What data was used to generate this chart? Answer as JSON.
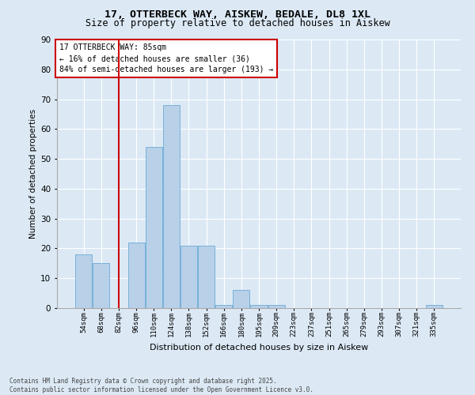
{
  "title1": "17, OTTERBECK WAY, AISKEW, BEDALE, DL8 1XL",
  "title2": "Size of property relative to detached houses in Aiskew",
  "xlabel": "Distribution of detached houses by size in Aiskew",
  "ylabel": "Number of detached properties",
  "categories": [
    "54sqm",
    "68sqm",
    "82sqm",
    "96sqm",
    "110sqm",
    "124sqm",
    "138sqm",
    "152sqm",
    "166sqm",
    "180sqm",
    "195sqm",
    "209sqm",
    "223sqm",
    "237sqm",
    "251sqm",
    "265sqm",
    "279sqm",
    "293sqm",
    "307sqm",
    "321sqm",
    "335sqm"
  ],
  "values": [
    18,
    15,
    0,
    22,
    54,
    68,
    21,
    21,
    1,
    6,
    1,
    1,
    0,
    0,
    0,
    0,
    0,
    0,
    0,
    0,
    1
  ],
  "bar_color": "#b8d0e8",
  "bar_edge_color": "#6aaad4",
  "bg_color": "#dce9f5",
  "grid_color": "#ffffff",
  "vline_color": "#cc0000",
  "vline_x": 2.0,
  "annotation_title": "17 OTTERBECK WAY: 85sqm",
  "annotation_line1": "← 16% of detached houses are smaller (36)",
  "annotation_line2": "84% of semi-detached houses are larger (193) →",
  "annotation_box_color": "#ffffff",
  "annotation_box_edge": "#cc0000",
  "ylim": [
    0,
    90
  ],
  "yticks": [
    0,
    10,
    20,
    30,
    40,
    50,
    60,
    70,
    80,
    90
  ],
  "footnote1": "Contains HM Land Registry data © Crown copyright and database right 2025.",
  "footnote2": "Contains public sector information licensed under the Open Government Licence v3.0."
}
